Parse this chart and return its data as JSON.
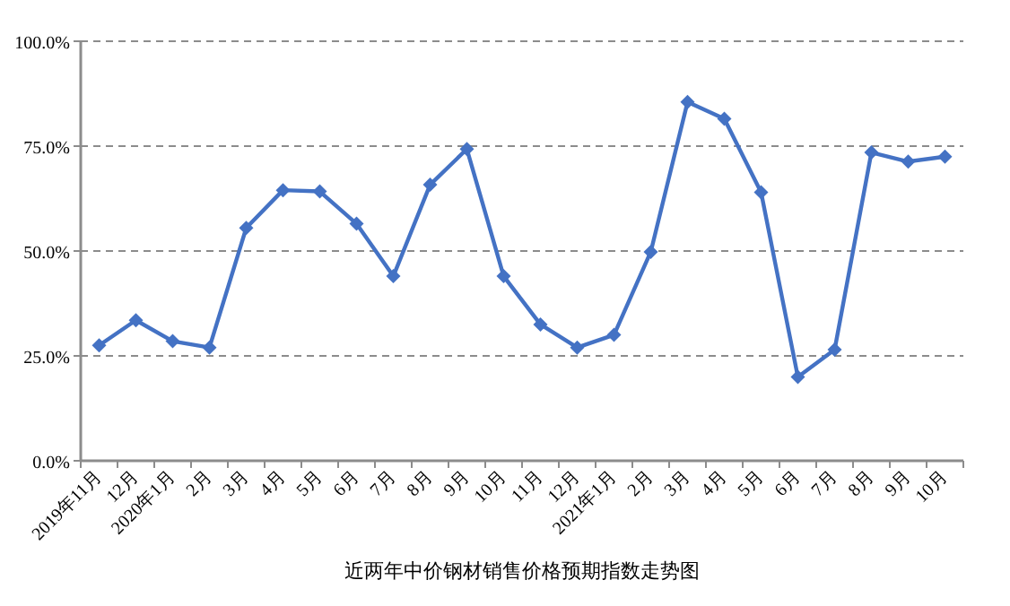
{
  "chart_data": {
    "type": "line",
    "title": "近两年中价钢材销售价格预期指数走势图",
    "categories": [
      "2019年11月",
      "12月",
      "2020年1月",
      "2月",
      "3月",
      "4月",
      "5月",
      "6月",
      "7月",
      "8月",
      "9月",
      "10月",
      "11月",
      "12月",
      "2021年1月",
      "2月",
      "3月",
      "4月",
      "5月",
      "6月",
      "7月",
      "8月",
      "9月",
      "10月"
    ],
    "series": [
      {
        "color": "#4472c4",
        "values": [
          27.5,
          33.5,
          28.5,
          27,
          55.5,
          64.5,
          64.2,
          56.5,
          44,
          65.8,
          74.3,
          44,
          32.5,
          27,
          30,
          49.8,
          85.5,
          81.5,
          64,
          20,
          26.5,
          73.5,
          71.3,
          72.5
        ]
      }
    ],
    "ylim": [
      0,
      100
    ],
    "yticks": [
      {
        "value": 0,
        "label": "0.0%"
      },
      {
        "value": 25,
        "label": "25.0%"
      },
      {
        "value": 50,
        "label": "50.0%"
      },
      {
        "value": 75,
        "label": "75.0%"
      },
      {
        "value": 100,
        "label": "100.0%"
      }
    ],
    "grid": "y",
    "marker": "diamond",
    "line_style": "solid"
  }
}
